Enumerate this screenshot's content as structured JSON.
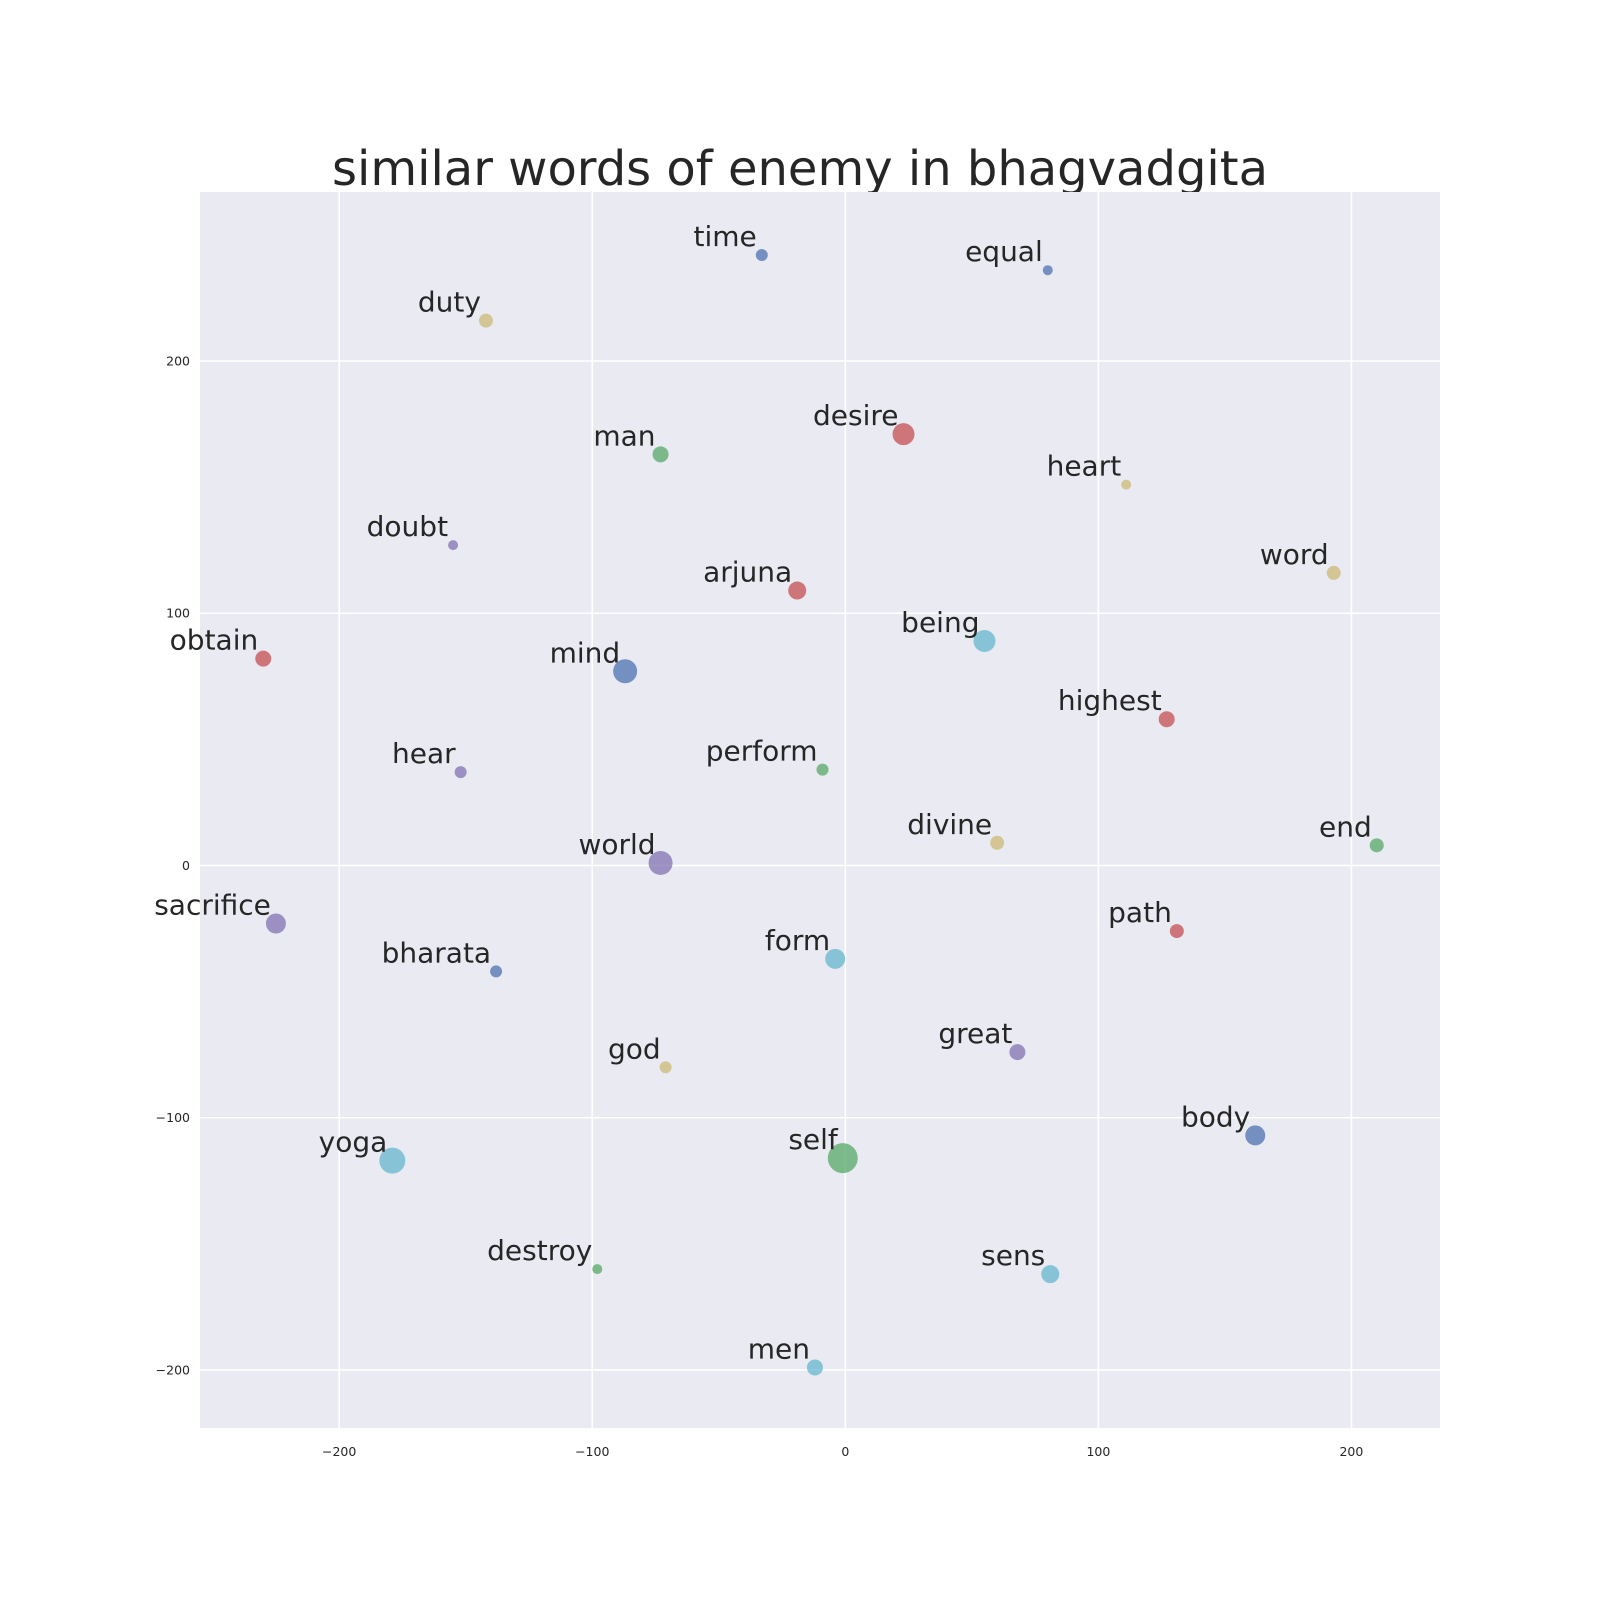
{
  "chart_data": {
    "type": "scatter",
    "title": "similar words of enemy in bhagvadgita",
    "xlabel": "",
    "ylabel": "",
    "xlim": [
      -255,
      235
    ],
    "ylim": [
      -223,
      267
    ],
    "x_ticks": [
      -200,
      -100,
      0,
      100,
      200
    ],
    "y_ticks": [
      -200,
      -100,
      0,
      100,
      200
    ],
    "x_tick_labels": [
      "−200",
      "−100",
      "0",
      "100",
      "200"
    ],
    "y_tick_labels": [
      "−200",
      "−100",
      "0",
      "100",
      "200"
    ],
    "grid": true,
    "legend": "none",
    "colors": {
      "background": "#eaeaf2",
      "grid": "#ffffff",
      "blue": "#4c72b0",
      "green": "#55a868",
      "red": "#c44e52",
      "purple": "#8172b2",
      "yellow": "#ccb974",
      "cyan": "#64b5cd"
    },
    "points": [
      {
        "label": "time",
        "x": -33,
        "y": 242,
        "size": 6,
        "color": "blue"
      },
      {
        "label": "equal",
        "x": 80,
        "y": 236,
        "size": 5,
        "color": "blue"
      },
      {
        "label": "duty",
        "x": -142,
        "y": 216,
        "size": 7,
        "color": "yellow"
      },
      {
        "label": "desire",
        "x": 23,
        "y": 171,
        "size": 11,
        "color": "red"
      },
      {
        "label": "man",
        "x": -73,
        "y": 163,
        "size": 8,
        "color": "green"
      },
      {
        "label": "heart",
        "x": 111,
        "y": 151,
        "size": 5,
        "color": "yellow"
      },
      {
        "label": "doubt",
        "x": -155,
        "y": 127,
        "size": 5,
        "color": "purple"
      },
      {
        "label": "word",
        "x": 193,
        "y": 116,
        "size": 7,
        "color": "yellow"
      },
      {
        "label": "arjuna",
        "x": -19,
        "y": 109,
        "size": 9,
        "color": "red"
      },
      {
        "label": "being",
        "x": 55,
        "y": 89,
        "size": 11,
        "color": "cyan"
      },
      {
        "label": "obtain",
        "x": -230,
        "y": 82,
        "size": 8,
        "color": "red"
      },
      {
        "label": "mind",
        "x": -87,
        "y": 77,
        "size": 12,
        "color": "blue"
      },
      {
        "label": "highest",
        "x": 127,
        "y": 58,
        "size": 8,
        "color": "red"
      },
      {
        "label": "hear",
        "x": -152,
        "y": 37,
        "size": 6,
        "color": "purple"
      },
      {
        "label": "perform",
        "x": -9,
        "y": 38,
        "size": 6,
        "color": "green"
      },
      {
        "label": "divine",
        "x": 60,
        "y": 9,
        "size": 7,
        "color": "yellow"
      },
      {
        "label": "end",
        "x": 210,
        "y": 8,
        "size": 7,
        "color": "green"
      },
      {
        "label": "world",
        "x": -73,
        "y": 1,
        "size": 12,
        "color": "purple"
      },
      {
        "label": "sacrifice",
        "x": -225,
        "y": -23,
        "size": 10,
        "color": "purple"
      },
      {
        "label": "path",
        "x": 131,
        "y": -26,
        "size": 7,
        "color": "red"
      },
      {
        "label": "bharata",
        "x": -138,
        "y": -42,
        "size": 6,
        "color": "blue"
      },
      {
        "label": "form",
        "x": -4,
        "y": -37,
        "size": 10,
        "color": "cyan"
      },
      {
        "label": "great",
        "x": 68,
        "y": -74,
        "size": 8,
        "color": "purple"
      },
      {
        "label": "god",
        "x": -71,
        "y": -80,
        "size": 6,
        "color": "yellow"
      },
      {
        "label": "body",
        "x": 162,
        "y": -107,
        "size": 10,
        "color": "blue"
      },
      {
        "label": "yoga",
        "x": -179,
        "y": -117,
        "size": 13,
        "color": "cyan"
      },
      {
        "label": "self",
        "x": -1,
        "y": -116,
        "size": 15,
        "color": "green"
      },
      {
        "label": "destroy",
        "x": -98,
        "y": -160,
        "size": 5,
        "color": "green"
      },
      {
        "label": "sens",
        "x": 81,
        "y": -162,
        "size": 9,
        "color": "cyan"
      },
      {
        "label": "men",
        "x": -12,
        "y": -199,
        "size": 8,
        "color": "cyan"
      }
    ]
  }
}
